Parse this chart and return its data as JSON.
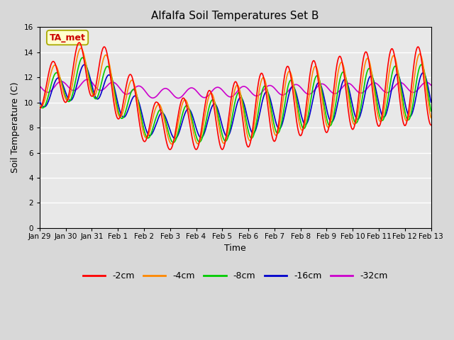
{
  "title": "Alfalfa Soil Temperatures Set B",
  "xlabel": "Time",
  "ylabel": "Soil Temperature (C)",
  "ylim": [
    0,
    16
  ],
  "yticks": [
    0,
    2,
    4,
    6,
    8,
    10,
    12,
    14,
    16
  ],
  "plot_bg_color": "#e8e8e8",
  "fig_bg_color": "#d8d8d8",
  "colors": {
    "-2cm": "#ff0000",
    "-4cm": "#ff8800",
    "-8cm": "#00cc00",
    "-16cm": "#0000cc",
    "-32cm": "#cc00cc"
  },
  "annotation_text": "TA_met",
  "annotation_color": "#cc0000",
  "annotation_bg": "#ffffcc",
  "x_tick_labels": [
    "Jan 29",
    "Jan 30",
    "Jan 31",
    "Feb 1",
    "Feb 2",
    "Feb 3",
    "Feb 4",
    "Feb 5",
    "Feb 6",
    "Feb 7",
    "Feb 8",
    "Feb 9",
    "Feb 10",
    "Feb 11",
    "Feb 12",
    "Feb 13"
  ],
  "n_days": 15
}
